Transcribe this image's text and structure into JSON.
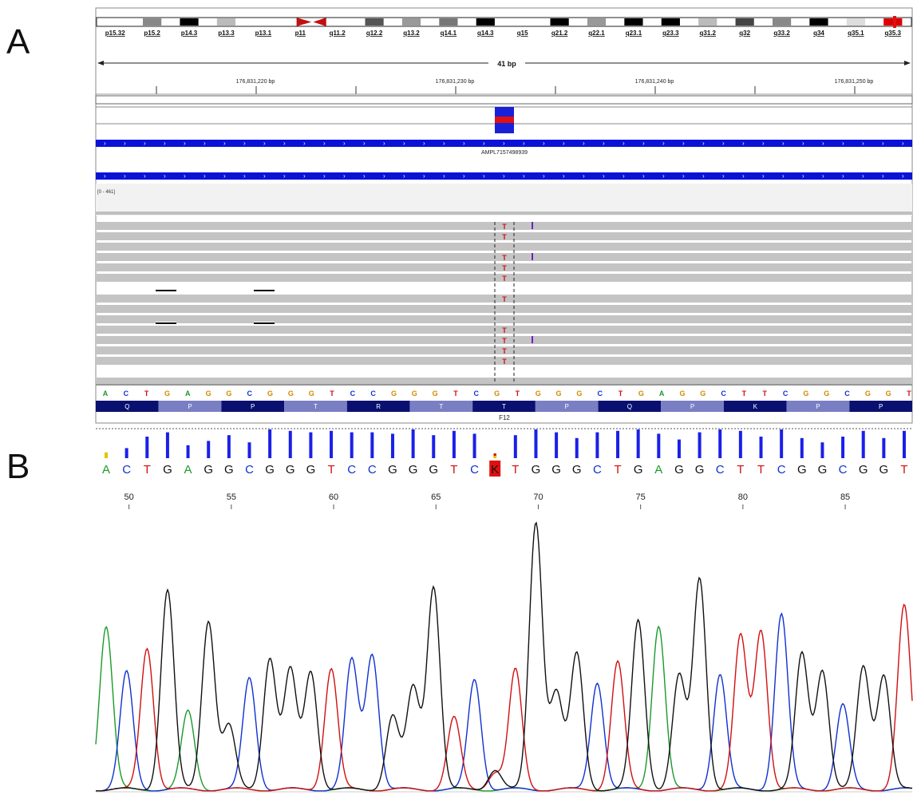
{
  "panels": {
    "a": "A",
    "b": "B"
  },
  "igv": {
    "bands": [
      "p15.32",
      "p15.2",
      "p14.3",
      "p13.3",
      "p13.1",
      "p11",
      "q11.2",
      "q12.2",
      "q13.2",
      "q14.1",
      "q14.3",
      "q15",
      "q21.2",
      "q22.1",
      "q23.1",
      "q23.3",
      "q31.2",
      "q32",
      "q33.2",
      "q34",
      "q35.1",
      "q35.3"
    ],
    "span_label": "41 bp",
    "positions": [
      "176,831,220 bp",
      "176,831,230 bp",
      "176,831,240 bp",
      "176,831,250 bp"
    ],
    "amplicon_label": "AMPL7157498939",
    "coverage_range": "[0 - 461]",
    "read_allele": "T",
    "read_variant_rows": 10,
    "reference_seq": [
      "A",
      "C",
      "T",
      "G",
      "A",
      "G",
      "G",
      "C",
      "G",
      "G",
      "G",
      "T",
      "C",
      "C",
      "G",
      "G",
      "G",
      "T",
      "C",
      "G",
      "T",
      "G",
      "G",
      "G",
      "C",
      "T",
      "G",
      "A",
      "G",
      "G",
      "C",
      "T",
      "T",
      "C",
      "G",
      "G",
      "C",
      "G",
      "G",
      "T"
    ],
    "amino_acids": [
      "Q",
      "P",
      "P",
      "T",
      "R",
      "T",
      "T",
      "P",
      "Q",
      "P",
      "K",
      "P",
      "P"
    ],
    "gene_label": "F12",
    "colors": {
      "A": "#1a9a2a",
      "C": "#1030d0",
      "G": "#d08a00",
      "T": "#d01010",
      "feature": "#0b12d8",
      "variant": "#d01010",
      "insertion": "#7020c0"
    }
  },
  "trace": {
    "basecalls": [
      "A",
      "C",
      "T",
      "G",
      "A",
      "G",
      "G",
      "C",
      "G",
      "G",
      "G",
      "T",
      "C",
      "C",
      "G",
      "G",
      "G",
      "T",
      "C",
      "K",
      "T",
      "G",
      "G",
      "G",
      "C",
      "T",
      "G",
      "A",
      "G",
      "G",
      "C",
      "T",
      "T",
      "C",
      "G",
      "G",
      "C",
      "G",
      "G",
      "T"
    ],
    "ambiguous_call": "K",
    "position_labels": [
      "50",
      "55",
      "60",
      "65",
      "70",
      "75",
      "80",
      "85"
    ],
    "quality_bars": [
      0.2,
      0.35,
      0.75,
      0.9,
      0.45,
      0.6,
      0.8,
      0.55,
      1.0,
      0.95,
      0.9,
      0.95,
      0.9,
      0.9,
      0.85,
      1.0,
      0.8,
      0.95,
      0.85,
      0.15,
      0.8,
      1.0,
      0.9,
      0.7,
      0.9,
      0.95,
      1.0,
      0.85,
      0.65,
      0.9,
      1.0,
      0.95,
      0.75,
      1.0,
      0.7,
      0.55,
      0.75,
      0.95,
      0.7,
      0.95
    ],
    "colors": {
      "A": "#1a9a2a",
      "C": "#1030d0",
      "G": "#111111",
      "T": "#d01010",
      "K": "#d01010",
      "quality": "#1a20e8",
      "low_quality": "#e6c000"
    }
  }
}
